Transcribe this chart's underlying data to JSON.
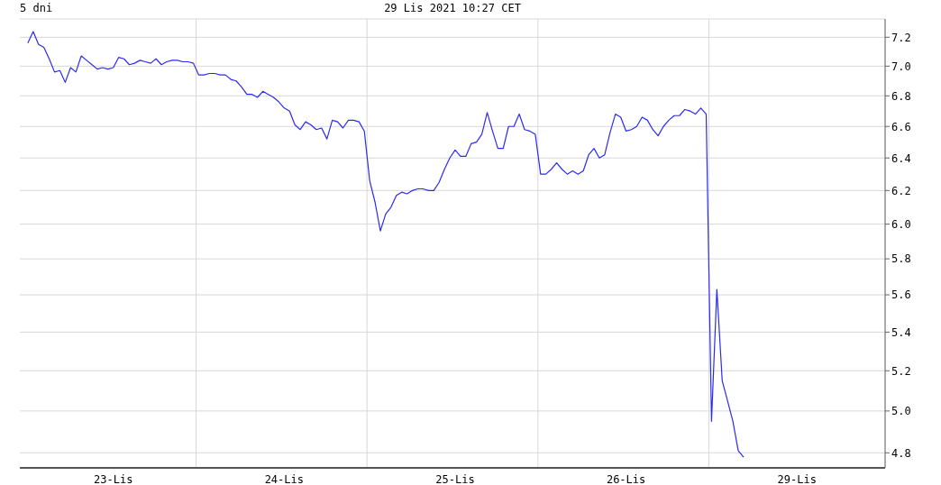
{
  "chart_data": {
    "type": "line",
    "title": "5 dni",
    "subtitle": "29 Lis 2021 10:27 CET",
    "categories": [
      null,
      null,
      null,
      null,
      null,
      null,
      null,
      null,
      null,
      null,
      null,
      null,
      null,
      null,
      null,
      null,
      "23-Lis",
      null,
      null,
      null,
      null,
      null,
      null,
      null,
      null,
      null,
      null,
      null,
      null,
      null,
      null,
      null,
      null,
      null,
      null,
      null,
      null,
      null,
      null,
      null,
      null,
      null,
      null,
      null,
      null,
      null,
      null,
      null,
      "24-Lis",
      null,
      null,
      null,
      null,
      null,
      null,
      null,
      null,
      null,
      null,
      null,
      null,
      null,
      null,
      null,
      null,
      null,
      null,
      null,
      null,
      null,
      null,
      null,
      null,
      null,
      null,
      null,
      null,
      null,
      null,
      null,
      "25-Lis",
      null,
      null,
      null,
      null,
      null,
      null,
      null,
      null,
      null,
      null,
      null,
      null,
      null,
      null,
      null,
      null,
      null,
      null,
      null,
      null,
      null,
      null,
      null,
      null,
      null,
      null,
      null,
      null,
      null,
      null,
      null,
      "26-Lis",
      null,
      null,
      null,
      null,
      null,
      null,
      null,
      null,
      null,
      null,
      null,
      null,
      null,
      null,
      null,
      null,
      null,
      null,
      null,
      null,
      null,
      null,
      null,
      null,
      null,
      null,
      null,
      null,
      null,
      null,
      null,
      "29-Lis",
      null,
      null,
      null,
      null,
      null,
      null,
      null,
      null,
      null,
      null,
      null,
      null,
      null,
      null,
      null
    ],
    "series": [
      {
        "color": "#2b2bf0",
        "values": [
          7.16,
          7.24,
          7.15,
          7.13,
          7.05,
          6.96,
          6.97,
          6.89,
          6.99,
          6.96,
          7.07,
          7.04,
          7.01,
          6.98,
          6.99,
          6.98,
          6.99,
          7.06,
          7.05,
          7.01,
          7.02,
          7.04,
          7.03,
          7.02,
          7.05,
          7.01,
          7.03,
          7.04,
          7.04,
          7.03,
          7.03,
          7.02,
          6.94,
          6.94,
          6.95,
          6.95,
          6.94,
          6.94,
          6.91,
          6.9,
          6.86,
          6.81,
          6.81,
          6.79,
          6.83,
          6.81,
          6.79,
          6.76,
          6.72,
          6.7,
          6.61,
          6.58,
          6.63,
          6.61,
          6.58,
          6.59,
          6.52,
          6.64,
          6.63,
          6.59,
          6.64,
          6.64,
          6.63,
          6.57,
          6.26,
          6.13,
          5.96,
          6.06,
          6.1,
          6.17,
          6.19,
          6.18,
          6.2,
          6.21,
          6.21,
          6.2,
          6.2,
          6.25,
          6.33,
          6.4,
          6.45,
          6.41,
          6.41,
          6.49,
          6.5,
          6.55,
          6.69,
          6.57,
          6.46,
          6.46,
          6.6,
          6.6,
          6.68,
          6.58,
          6.57,
          6.55,
          6.3,
          6.3,
          6.33,
          6.37,
          6.33,
          6.3,
          6.32,
          6.3,
          6.32,
          6.42,
          6.46,
          6.4,
          6.42,
          6.56,
          6.68,
          6.66,
          6.57,
          6.58,
          6.6,
          6.66,
          6.64,
          6.58,
          6.54,
          6.6,
          6.64,
          6.67,
          6.67,
          6.71,
          6.7,
          6.68,
          6.72,
          6.68,
          4.95,
          5.63,
          5.15,
          5.05,
          4.95,
          4.81,
          4.78,
          null,
          null,
          null,
          null,
          null,
          null,
          null,
          null,
          null,
          null,
          null,
          null,
          null,
          null,
          null,
          null,
          null,
          null,
          null,
          null,
          null,
          null,
          null,
          null,
          null
        ]
      }
    ],
    "ylim": [
      4.73,
      7.33
    ],
    "log": true,
    "yticks": [
      4.8,
      {
        "value": 5,
        "label": "5.0"
      },
      5.2,
      5.4,
      5.6,
      5.8,
      {
        "value": 6,
        "label": "6.0"
      },
      6.2,
      6.4,
      6.6,
      6.8,
      {
        "value": 7,
        "label": "7.0"
      },
      7.2
    ],
    "grid": true,
    "legend": false,
    "marker": "none",
    "line_style": "solid"
  }
}
